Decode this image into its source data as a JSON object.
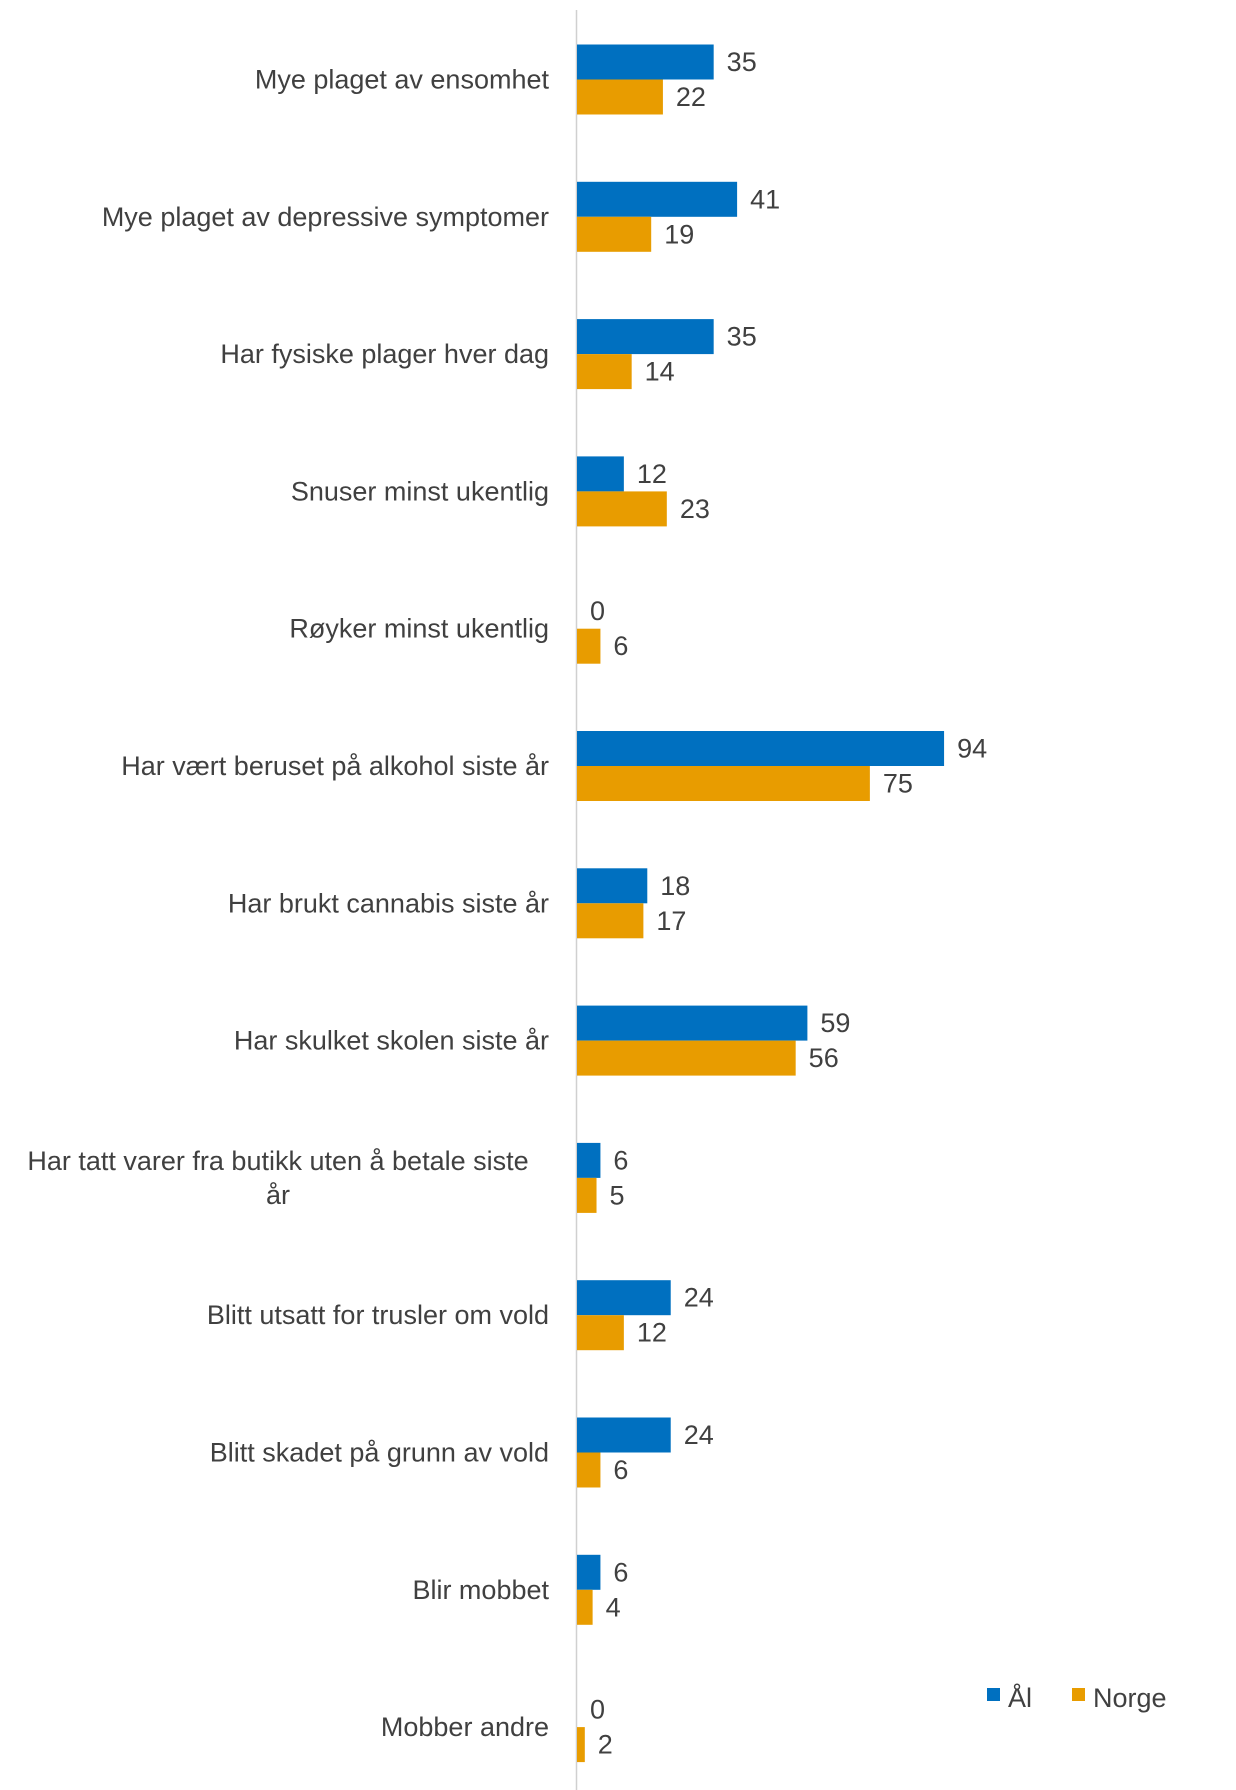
{
  "chart_data": {
    "type": "bar",
    "orientation": "horizontal",
    "categories": [
      "Mye plaget av ensomhet",
      "Mye plaget av depressive symptomer",
      "Har fysiske plager hver dag",
      "Snuser minst ukentlig",
      "Røyker minst ukentlig",
      "Har vært beruset på alkohol siste år",
      "Har brukt cannabis siste år",
      "Har skulket skolen siste år",
      "Har tatt varer fra butikk uten å betale siste år",
      "Blitt utsatt for trusler om vold",
      "Blitt skadet på grunn av vold",
      "Blir mobbet",
      "Mobber andre"
    ],
    "category_lines": [
      [
        "Mye plaget av ensomhet"
      ],
      [
        "Mye plaget av depressive symptomer"
      ],
      [
        "Har fysiske plager hver dag"
      ],
      [
        "Snuser minst ukentlig"
      ],
      [
        "Røyker minst ukentlig"
      ],
      [
        "Har vært beruset på alkohol siste år"
      ],
      [
        "Har brukt cannabis siste år"
      ],
      [
        "Har skulket skolen siste år"
      ],
      [
        "Har tatt varer fra butikk uten å betale siste",
        "år"
      ],
      [
        "Blitt utsatt for trusler om vold"
      ],
      [
        "Blitt skadet på grunn av vold"
      ],
      [
        "Blir mobbet"
      ],
      [
        "Mobber andre"
      ]
    ],
    "series": [
      {
        "name": "Ål",
        "color": "#0070C0",
        "values": [
          35,
          41,
          35,
          12,
          0,
          94,
          18,
          59,
          6,
          24,
          24,
          6,
          0
        ]
      },
      {
        "name": "Norge",
        "color": "#E89C00",
        "values": [
          22,
          19,
          14,
          23,
          6,
          75,
          17,
          56,
          5,
          12,
          6,
          4,
          2
        ]
      }
    ],
    "xlim": [
      0,
      94
    ],
    "legend_position": "bottom-right",
    "grid": false
  }
}
